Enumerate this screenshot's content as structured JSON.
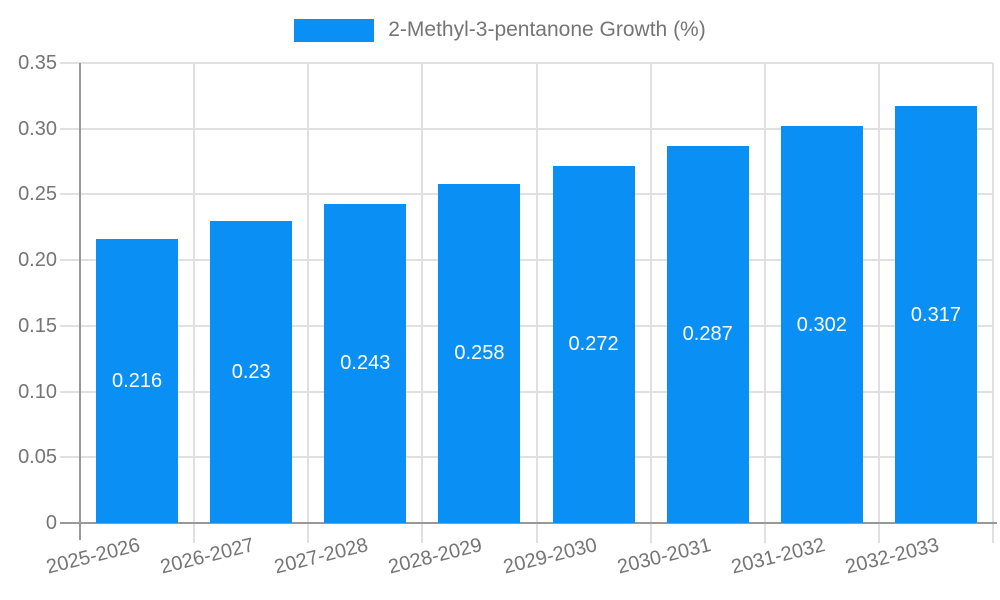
{
  "legend": {
    "label": "2-Methyl-3-pentanone Growth (%)"
  },
  "colors": {
    "bar": "#0a90f5",
    "grid": "#e0e0e0",
    "axis": "#999999",
    "axis_text": "#757575",
    "value_label": "#ffffff",
    "background": "#ffffff"
  },
  "chart_data": {
    "type": "bar",
    "title": "",
    "xlabel": "",
    "ylabel": "",
    "categories": [
      "2025-2026",
      "2026-2027",
      "2027-2028",
      "2028-2029",
      "2029-2030",
      "2030-2031",
      "2031-2032",
      "2032-2033"
    ],
    "series": [
      {
        "name": "2-Methyl-3-pentanone Growth (%)",
        "values": [
          0.216,
          0.23,
          0.243,
          0.258,
          0.272,
          0.287,
          0.302,
          0.317
        ]
      }
    ],
    "value_labels": [
      "0.216",
      "0.23",
      "0.243",
      "0.258",
      "0.272",
      "0.287",
      "0.302",
      "0.317"
    ],
    "ylim": [
      0,
      0.35
    ],
    "yticks": [
      0,
      0.05,
      0.1,
      0.15,
      0.2,
      0.25,
      0.3,
      0.35
    ],
    "ytick_labels": [
      "0",
      "0.05",
      "0.10",
      "0.15",
      "0.20",
      "0.25",
      "0.30",
      "0.35"
    ],
    "grid": true,
    "legend_position": "top-center",
    "x_tick_label_rotation_deg": -14
  }
}
